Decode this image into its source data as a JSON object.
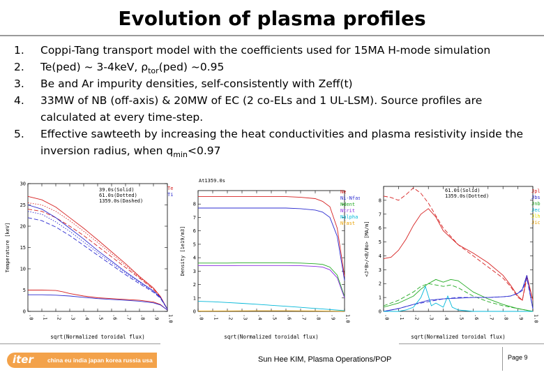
{
  "slide": {
    "title": "Evolution of plasma profiles",
    "items": [
      {
        "num": "1.",
        "parts": [
          {
            "t": "Coppi-Tang transport model with the coefficients used for 15MA H-mode simulation"
          }
        ]
      },
      {
        "num": "2.",
        "parts": [
          {
            "t": "Te(ped) ~ 3-4keV, ρ"
          },
          {
            "t": "tor",
            "sub": true
          },
          {
            "t": "(ped) ~0.95"
          }
        ]
      },
      {
        "num": "3.",
        "parts": [
          {
            "t": "Be and Ar impurity densities, self-consistently with Zeff(t)"
          }
        ]
      },
      {
        "num": "4.",
        "parts": [
          {
            "t": "33MW of NB (off-axis) & 20MW of EC (2 co-ELs and 1 UL-LSM). Source profiles are calculated at every time-step."
          }
        ]
      },
      {
        "num": "5.",
        "parts": [
          {
            "t": "Effective sawteeth by increasing the heat conductivities and plasma resistivity inside the inversion radius, when q"
          },
          {
            "t": "min",
            "sub": true
          },
          {
            "t": "<0.97"
          }
        ]
      }
    ],
    "footer": {
      "logo_word": "iter",
      "logo_countries": "china eu india japan korea russia usa",
      "author": "Sun Hee KIM, Plasma Operations/POP",
      "page": "Page 9"
    }
  },
  "chart_data": [
    {
      "type": "line",
      "title": "",
      "xlabel": "sqrt(Normalized toroidal flux)",
      "ylabel": "Temperature [keV]",
      "xlim": [
        0,
        1
      ],
      "ylim": [
        0,
        30
      ],
      "yticks": [
        0,
        5,
        10,
        15,
        20,
        25,
        30
      ],
      "xticks": [
        ".0",
        ".1",
        ".2",
        ".3",
        ".4",
        ".5",
        ".6",
        ".7",
        ".8",
        ".9",
        "1.0"
      ],
      "legend_text": [
        "39.0s(Solid)",
        "61.0s(Dotted)",
        "1359.0s(Dashed)"
      ],
      "legend": [
        {
          "label": "Te",
          "color": "#d62020"
        },
        {
          "label": "Ti",
          "color": "#2b2bd0"
        }
      ],
      "series": [
        {
          "name": "Te",
          "color": "#d62020",
          "style": "solid",
          "x": [
            0,
            0.1,
            0.2,
            0.3,
            0.4,
            0.5,
            0.6,
            0.7,
            0.8,
            0.9,
            0.95,
            1.0
          ],
          "y": [
            27.0,
            26.2,
            24.5,
            22.0,
            19.5,
            16.8,
            14.0,
            11.2,
            8.2,
            5.5,
            3.5,
            0.5
          ]
        },
        {
          "name": "Te",
          "color": "#d62020",
          "style": "dotted",
          "x": [
            0,
            0.1,
            0.2,
            0.3,
            0.4,
            0.5,
            0.6,
            0.7,
            0.8,
            0.9,
            0.95,
            1.0
          ],
          "y": [
            25.5,
            25.0,
            23.5,
            21.3,
            18.8,
            16.2,
            13.5,
            10.8,
            8.0,
            5.3,
            3.5,
            0.5
          ]
        },
        {
          "name": "Te",
          "color": "#d62020",
          "style": "dashed",
          "x": [
            0,
            0.1,
            0.2,
            0.3,
            0.4,
            0.5,
            0.6,
            0.7,
            0.8,
            0.9,
            0.95,
            1.0
          ],
          "y": [
            24.0,
            23.5,
            22.0,
            20.0,
            17.8,
            15.3,
            12.8,
            10.3,
            7.8,
            5.2,
            3.4,
            0.5
          ]
        },
        {
          "name": "Ti",
          "color": "#2b2bd0",
          "style": "solid",
          "x": [
            0,
            0.1,
            0.2,
            0.3,
            0.4,
            0.5,
            0.6,
            0.7,
            0.8,
            0.9,
            0.95,
            1.0
          ],
          "y": [
            25.0,
            24.0,
            22.0,
            19.5,
            17.0,
            14.3,
            11.8,
            9.3,
            7.0,
            4.8,
            3.3,
            0.5
          ]
        },
        {
          "name": "Ti",
          "color": "#2b2bd0",
          "style": "dotted",
          "x": [
            0,
            0.1,
            0.2,
            0.3,
            0.4,
            0.5,
            0.6,
            0.7,
            0.8,
            0.9,
            0.95,
            1.0
          ],
          "y": [
            23.5,
            22.8,
            21.0,
            18.8,
            16.3,
            13.8,
            11.4,
            9.0,
            6.8,
            4.7,
            3.2,
            0.5
          ]
        },
        {
          "name": "Ti",
          "color": "#2b2bd0",
          "style": "dashed",
          "x": [
            0,
            0.1,
            0.2,
            0.3,
            0.4,
            0.5,
            0.6,
            0.7,
            0.8,
            0.9,
            0.95,
            1.0
          ],
          "y": [
            22.0,
            21.3,
            19.8,
            17.8,
            15.5,
            13.2,
            10.9,
            8.6,
            6.5,
            4.5,
            3.1,
            0.5
          ]
        },
        {
          "name": "Te",
          "color": "#d62020",
          "style": "solid",
          "x": [
            0,
            0.1,
            0.2,
            0.25,
            0.3,
            0.4,
            0.5,
            0.6,
            0.7,
            0.8,
            0.9,
            0.95,
            1.0
          ],
          "y": [
            5.0,
            5.0,
            4.9,
            4.6,
            4.2,
            3.6,
            3.2,
            3.0,
            2.8,
            2.6,
            2.2,
            1.6,
            0.3
          ]
        },
        {
          "name": "Ti",
          "color": "#2b2bd0",
          "style": "solid",
          "x": [
            0,
            0.1,
            0.2,
            0.3,
            0.4,
            0.5,
            0.6,
            0.7,
            0.8,
            0.9,
            0.95,
            1.0
          ],
          "y": [
            3.9,
            3.9,
            3.8,
            3.6,
            3.3,
            3.0,
            2.8,
            2.6,
            2.4,
            2.0,
            1.5,
            0.3
          ]
        }
      ]
    },
    {
      "type": "line",
      "title": "At1359.0s",
      "xlabel": "sqrt(Normalized toroidal flux)",
      "ylabel": "Density [1e19/m3]",
      "xlim": [
        0,
        1
      ],
      "ylim": [
        0,
        9
      ],
      "yticks": [
        0,
        1,
        2,
        3,
        4,
        5,
        6,
        7,
        8
      ],
      "xticks": [
        ".0",
        ".1",
        ".2",
        ".3",
        ".4",
        ".5",
        ".6",
        ".7",
        ".8",
        ".9",
        "1.0"
      ],
      "legend_text": [],
      "legend": [
        {
          "label": "Ne",
          "color": "#d62020"
        },
        {
          "label": "Ni-Nfas",
          "color": "#2b2bd0"
        },
        {
          "label": "Ndent",
          "color": "#22aa22"
        },
        {
          "label": "Ntrit",
          "color": "#8a2be2"
        },
        {
          "label": "Nalpha",
          "color": "#00b7d8"
        },
        {
          "label": "Nfast",
          "color": "#e8a000"
        }
      ],
      "series": [
        {
          "name": "Ne",
          "color": "#d62020",
          "style": "solid",
          "x": [
            0,
            0.1,
            0.2,
            0.3,
            0.4,
            0.5,
            0.6,
            0.7,
            0.8,
            0.85,
            0.9,
            0.95,
            1.0
          ],
          "y": [
            8.55,
            8.55,
            8.55,
            8.55,
            8.55,
            8.55,
            8.55,
            8.5,
            8.4,
            8.2,
            7.8,
            6.2,
            2.6
          ]
        },
        {
          "name": "Ni-Nfas",
          "color": "#2b2bd0",
          "style": "solid",
          "x": [
            0,
            0.1,
            0.2,
            0.3,
            0.4,
            0.5,
            0.6,
            0.7,
            0.8,
            0.85,
            0.9,
            0.95,
            1.0
          ],
          "y": [
            7.7,
            7.7,
            7.7,
            7.7,
            7.7,
            7.7,
            7.7,
            7.65,
            7.55,
            7.4,
            7.0,
            5.6,
            2.3
          ]
        },
        {
          "name": "Ndent",
          "color": "#22aa22",
          "style": "solid",
          "x": [
            0,
            0.1,
            0.2,
            0.3,
            0.4,
            0.5,
            0.6,
            0.7,
            0.8,
            0.85,
            0.9,
            0.95,
            1.0
          ],
          "y": [
            3.6,
            3.6,
            3.6,
            3.62,
            3.62,
            3.62,
            3.62,
            3.6,
            3.55,
            3.5,
            3.3,
            2.7,
            1.1
          ]
        },
        {
          "name": "Ntrit",
          "color": "#8a2be2",
          "style": "solid",
          "x": [
            0,
            0.1,
            0.2,
            0.3,
            0.4,
            0.5,
            0.6,
            0.7,
            0.8,
            0.85,
            0.9,
            0.95,
            1.0
          ],
          "y": [
            3.4,
            3.4,
            3.4,
            3.42,
            3.42,
            3.42,
            3.42,
            3.4,
            3.35,
            3.3,
            3.1,
            2.5,
            1.0
          ]
        },
        {
          "name": "Nalpha",
          "color": "#00b7d8",
          "style": "solid",
          "x": [
            0,
            0.1,
            0.2,
            0.3,
            0.4,
            0.5,
            0.6,
            0.7,
            0.8,
            0.9,
            1.0
          ],
          "y": [
            0.75,
            0.72,
            0.66,
            0.6,
            0.53,
            0.45,
            0.38,
            0.3,
            0.22,
            0.14,
            0.05
          ]
        },
        {
          "name": "Nfast",
          "color": "#e8a000",
          "style": "solid",
          "x": [
            0,
            0.2,
            0.4,
            0.6,
            0.8,
            1.0
          ],
          "y": [
            0.02,
            0.03,
            0.04,
            0.04,
            0.03,
            0.01
          ]
        }
      ]
    },
    {
      "type": "line",
      "title": "",
      "xlabel": "sqrt(Normalized toroidal flux)",
      "ylabel": "<J*B>/<B/Bo> [MA/m]",
      "xlim": [
        0,
        1
      ],
      "ylim": [
        0,
        9
      ],
      "yticks": [
        0,
        1,
        2,
        3,
        4,
        5,
        6,
        7,
        8
      ],
      "xticks": [
        ".0",
        ".1",
        ".2",
        ".3",
        ".4",
        ".5",
        ".6",
        ".7",
        ".8",
        ".9",
        "1.0"
      ],
      "legend_text": [
        "61.0s(Solid)",
        "1359.0s(Dotted)"
      ],
      "legend": [
        {
          "label": "Jpl",
          "color": "#d62020"
        },
        {
          "label": "Jbs",
          "color": "#2b2bd0"
        },
        {
          "label": "Jnb",
          "color": "#22aa22"
        },
        {
          "label": "Jec",
          "color": "#00b7d8"
        },
        {
          "label": "Jlh",
          "color": "#e8e000"
        },
        {
          "label": "Jic",
          "color": "#e8a000"
        }
      ],
      "series": [
        {
          "name": "Jpl",
          "color": "#d62020",
          "style": "solid",
          "x": [
            0,
            0.05,
            0.1,
            0.15,
            0.2,
            0.25,
            0.3,
            0.35,
            0.4,
            0.5,
            0.6,
            0.7,
            0.8,
            0.85,
            0.9,
            0.93,
            0.96,
            1.0
          ],
          "y": [
            3.8,
            3.9,
            4.4,
            5.2,
            6.2,
            7.0,
            7.4,
            6.8,
            5.8,
            4.8,
            4.2,
            3.5,
            2.6,
            1.9,
            1.1,
            0.8,
            2.6,
            0.8
          ]
        },
        {
          "name": "Jpl",
          "color": "#d62020",
          "style": "dashed",
          "x": [
            0,
            0.05,
            0.1,
            0.15,
            0.2,
            0.25,
            0.3,
            0.35,
            0.4,
            0.5,
            0.6,
            0.7,
            0.8,
            0.85,
            0.9,
            0.93,
            0.96,
            1.0
          ],
          "y": [
            8.3,
            8.2,
            8.0,
            8.4,
            8.9,
            8.5,
            7.8,
            6.9,
            6.0,
            4.8,
            4.0,
            3.2,
            2.4,
            1.8,
            1.0,
            0.8,
            2.4,
            0.8
          ]
        },
        {
          "name": "Jnb",
          "color": "#22aa22",
          "style": "solid",
          "x": [
            0,
            0.1,
            0.2,
            0.25,
            0.3,
            0.35,
            0.4,
            0.45,
            0.5,
            0.55,
            0.6,
            0.7,
            0.8,
            0.9,
            1.0
          ],
          "y": [
            0.3,
            0.6,
            1.1,
            1.6,
            2.0,
            2.3,
            2.1,
            2.3,
            2.2,
            1.8,
            1.4,
            0.9,
            0.5,
            0.2,
            0.0
          ]
        },
        {
          "name": "Jnb",
          "color": "#22aa22",
          "style": "dashed",
          "x": [
            0,
            0.1,
            0.2,
            0.25,
            0.3,
            0.35,
            0.4,
            0.45,
            0.5,
            0.55,
            0.6,
            0.7,
            0.8,
            0.9,
            1.0
          ],
          "y": [
            0.4,
            0.8,
            1.4,
            1.8,
            2.0,
            1.9,
            1.8,
            1.9,
            1.7,
            1.4,
            1.1,
            0.7,
            0.4,
            0.2,
            0.0
          ]
        },
        {
          "name": "Jbs",
          "color": "#2b2bd0",
          "style": "solid",
          "x": [
            0,
            0.1,
            0.2,
            0.3,
            0.4,
            0.5,
            0.6,
            0.7,
            0.8,
            0.85,
            0.9,
            0.93,
            0.96,
            1.0
          ],
          "y": [
            0.0,
            0.2,
            0.5,
            0.8,
            0.9,
            0.95,
            1.0,
            1.0,
            1.05,
            1.1,
            1.3,
            1.6,
            2.6,
            0.2
          ]
        },
        {
          "name": "Jbs",
          "color": "#2b2bd0",
          "style": "dashed",
          "x": [
            0,
            0.1,
            0.2,
            0.3,
            0.4,
            0.5,
            0.6,
            0.7,
            0.8,
            0.85,
            0.9,
            0.93,
            0.96,
            1.0
          ],
          "y": [
            0.0,
            0.2,
            0.5,
            0.7,
            0.9,
            1.0,
            1.0,
            1.0,
            1.05,
            1.1,
            1.3,
            1.5,
            2.4,
            0.2
          ]
        },
        {
          "name": "Jec",
          "color": "#00b7d8",
          "style": "solid",
          "x": [
            0,
            0.05,
            0.1,
            0.15,
            0.2,
            0.25,
            0.28,
            0.3,
            0.32,
            0.35,
            0.4,
            0.43,
            0.46,
            0.5,
            0.6,
            1.0
          ],
          "y": [
            0.0,
            0.0,
            0.0,
            0.1,
            0.3,
            1.0,
            1.8,
            1.1,
            0.4,
            0.6,
            0.3,
            1.1,
            0.3,
            0.1,
            0.0,
            0.0
          ]
        }
      ]
    }
  ]
}
